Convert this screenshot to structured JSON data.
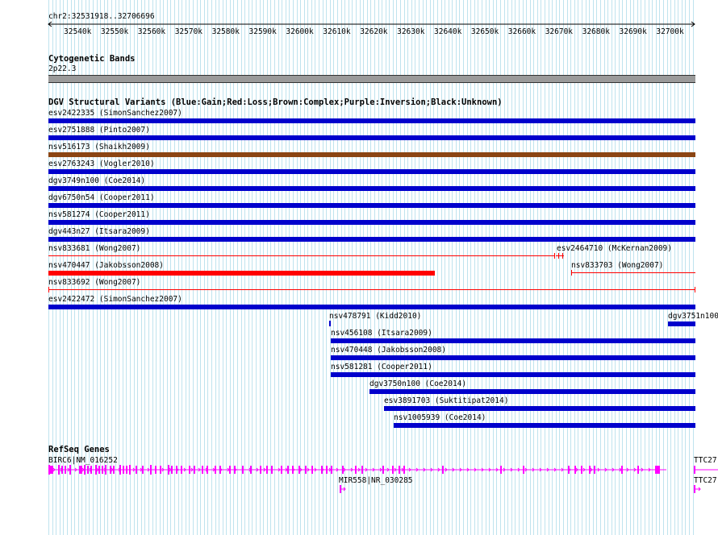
{
  "ruler": {
    "position": "chr2:32531918..32706696",
    "ticks": [
      "32540k",
      "32550k",
      "32560k",
      "32570k",
      "32580k",
      "32590k",
      "32600k",
      "32610k",
      "32620k",
      "32630k",
      "32640k",
      "32650k",
      "32660k",
      "32670k",
      "32680k",
      "32690k",
      "32700k"
    ]
  },
  "cytobands": {
    "title": "Cytogenetic Bands",
    "band": "2p22.3"
  },
  "dgv": {
    "title": "DGV Structural Variants (Blue:Gain;Red:Loss;Brown:Complex;Purple:Inversion;Black:Unknown)",
    "colors": {
      "gain": "#0000cc",
      "loss": "#ff0000",
      "complex": "#8b4513"
    },
    "variants": [
      {
        "label": "esv2422335 (SimonSanchez2007)",
        "type": "gain"
      },
      {
        "label": "esv2751888 (Pinto2007)",
        "type": "gain"
      },
      {
        "label": "nsv516173 (Shaikh2009)",
        "type": "complex"
      },
      {
        "label": "esv2763243 (Vogler2010)",
        "type": "gain"
      },
      {
        "label": "dgv3749n100 (Coe2014)",
        "type": "gain"
      },
      {
        "label": "dgv6750n54 (Cooper2011)",
        "type": "gain"
      },
      {
        "label": "nsv581274 (Cooper2011)",
        "type": "gain"
      },
      {
        "label": "dgv443n27 (Itsara2009)",
        "type": "gain"
      },
      {
        "label": "nsv833681 (Wong2007)",
        "type": "loss"
      },
      {
        "label": "esv2464710 (McKernan2009)",
        "type": "loss"
      },
      {
        "label": "nsv470447 (Jakobsson2008)",
        "type": "loss"
      },
      {
        "label": "nsv833703 (Wong2007)",
        "type": "loss"
      },
      {
        "label": "nsv833692 (Wong2007)",
        "type": "loss"
      },
      {
        "label": "esv2422472 (SimonSanchez2007)",
        "type": "gain"
      },
      {
        "label": "nsv478791 (Kidd2010)",
        "type": "gain"
      },
      {
        "label": "dgv3751n100",
        "type": "gain"
      },
      {
        "label": "nsv456108 (Itsara2009)",
        "type": "gain"
      },
      {
        "label": "nsv470448 (Jakobsson2008)",
        "type": "gain"
      },
      {
        "label": "nsv581281 (Cooper2011)",
        "type": "gain"
      },
      {
        "label": "dgv3750n100 (Coe2014)",
        "type": "gain"
      },
      {
        "label": "esv3891703 (Suktitipat2014)",
        "type": "gain"
      },
      {
        "label": "nsv1005939 (Coe2014)",
        "type": "gain"
      }
    ]
  },
  "refseq": {
    "title": "RefSeq Genes",
    "color": "#ff00ff",
    "genes": [
      {
        "label": "BIRC6|NM_016252"
      },
      {
        "label": "MIR558|NR_030285"
      },
      {
        "label": "TTC27"
      },
      {
        "label": "TTC27"
      }
    ]
  }
}
